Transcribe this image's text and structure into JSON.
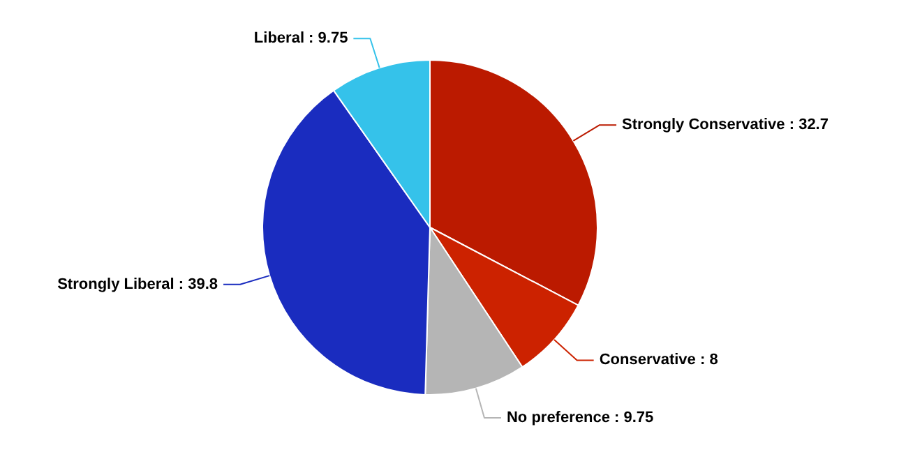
{
  "chart_data": {
    "type": "pie",
    "categories": [
      "Strongly Conservative",
      "Conservative",
      "No preference",
      "Strongly Liberal",
      "Liberal"
    ],
    "values": [
      32.7,
      8,
      9.75,
      39.8,
      9.75
    ],
    "colors": [
      "#bb1a00",
      "#cc2200",
      "#b5b5b5",
      "#1a2cbf",
      "#35c2ea"
    ],
    "value_labels": [
      ": 32.7",
      ": 8",
      ": 9.75",
      ": 39.8",
      ": 9.75"
    ]
  }
}
